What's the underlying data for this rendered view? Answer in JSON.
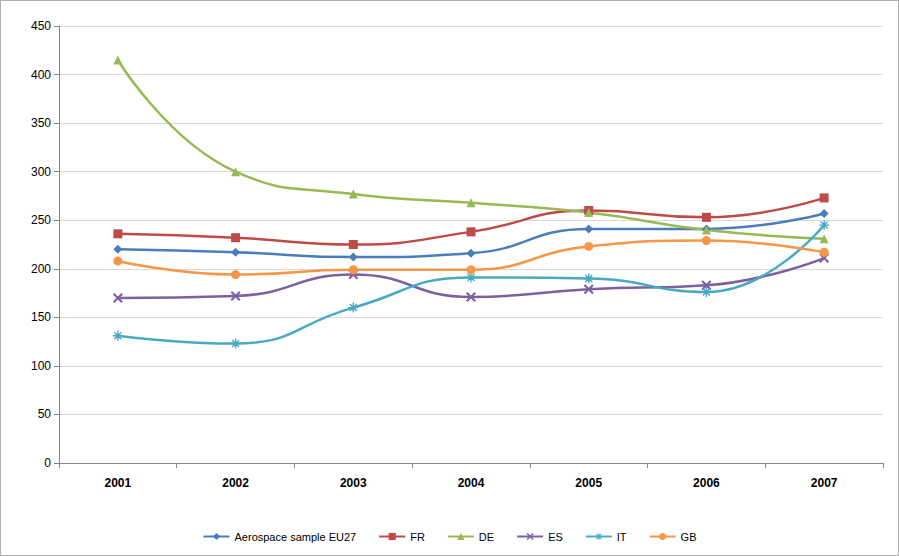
{
  "chart_data": {
    "type": "line",
    "categories": [
      "2001",
      "2002",
      "2003",
      "2004",
      "2005",
      "2006",
      "2007"
    ],
    "series": [
      {
        "name": "Aerospace sample EU27",
        "color": "#4a7ebb",
        "marker": "diamond",
        "line_style": "solid",
        "values": [
          220,
          217,
          212,
          216,
          241,
          241,
          257
        ]
      },
      {
        "name": "FR",
        "color": "#be4b48",
        "marker": "square",
        "line_style": "solid",
        "values": [
          236,
          232,
          225,
          238,
          260,
          253,
          273
        ]
      },
      {
        "name": "DE",
        "color": "#98b954",
        "marker": "triangle",
        "line_style": "solid",
        "values": [
          415,
          300,
          277,
          268,
          258,
          240,
          231
        ]
      },
      {
        "name": "ES",
        "color": "#7d60a0",
        "marker": "x",
        "line_style": "solid",
        "values": [
          170,
          172,
          194,
          171,
          179,
          183,
          211
        ]
      },
      {
        "name": "IT",
        "color": "#46aac5",
        "marker": "star",
        "line_style": "solid",
        "values": [
          131,
          123,
          160,
          191,
          190,
          176,
          245
        ]
      },
      {
        "name": "GB",
        "color": "#f79646",
        "marker": "circle",
        "line_style": "solid",
        "values": [
          208,
          194,
          199,
          199,
          223,
          229,
          217
        ]
      }
    ],
    "ylim": [
      0,
      450
    ],
    "yticks": [
      0,
      50,
      100,
      150,
      200,
      250,
      300,
      350,
      400,
      450
    ],
    "grid": true,
    "legend": "bottom"
  }
}
